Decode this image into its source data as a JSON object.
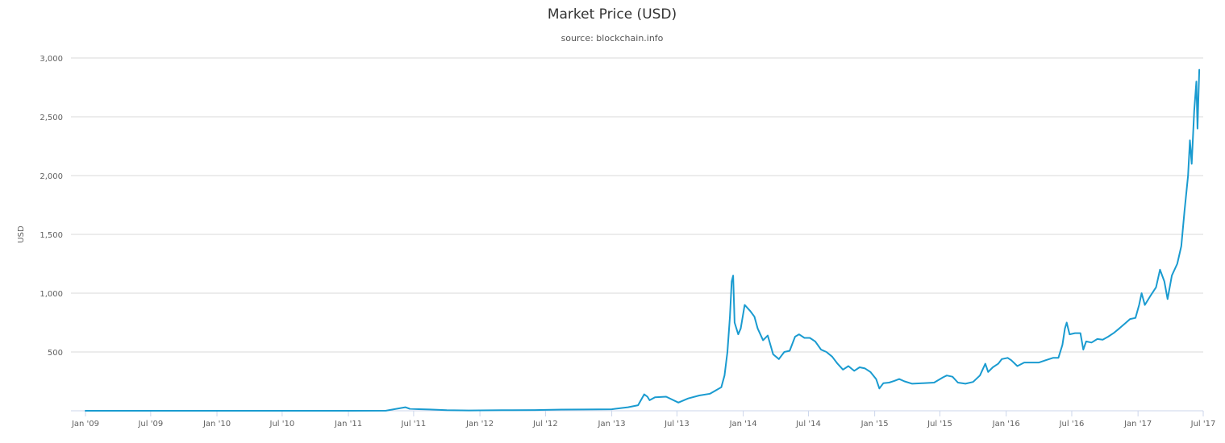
{
  "chart_data": {
    "type": "line",
    "title": "Market Price (USD)",
    "subtitle": "source: blockchain.info",
    "xlabel": "",
    "ylabel": "USD",
    "xlim": [
      "2009-01-01",
      "2017-07-01"
    ],
    "ylim": [
      0,
      3000
    ],
    "yticks": [
      500,
      1000,
      1500,
      2000,
      2500,
      3000
    ],
    "ytick_labels": [
      "500",
      "1,000",
      "1,500",
      "2,000",
      "2,500",
      "3,000"
    ],
    "xticks": [
      "2009-01-01",
      "2009-07-01",
      "2010-01-01",
      "2010-07-01",
      "2011-01-01",
      "2011-07-01",
      "2012-01-01",
      "2012-07-01",
      "2013-01-01",
      "2013-07-01",
      "2014-01-01",
      "2014-07-01",
      "2015-01-01",
      "2015-07-01",
      "2016-01-01",
      "2016-07-01",
      "2017-01-01",
      "2017-07-01"
    ],
    "xtick_labels": [
      "Jan '09",
      "Jul '09",
      "Jan '10",
      "Jul '10",
      "Jan '11",
      "Jul '11",
      "Jan '12",
      "Jul '12",
      "Jan '13",
      "Jul '13",
      "Jan '14",
      "Jul '14",
      "Jan '15",
      "Jul '15",
      "Jan '16",
      "Jul '16",
      "Jan '17",
      "Jul '17"
    ],
    "grid": true,
    "legend": "none",
    "color": "#1a9bd0",
    "series": [
      {
        "x": [
          "2009-01-01",
          "2010-07-01",
          "2011-01-01",
          "2011-04-15",
          "2011-06-08",
          "2011-06-20",
          "2011-07-15",
          "2011-08-15",
          "2011-10-01",
          "2011-12-01",
          "2012-03-01",
          "2012-06-01",
          "2012-08-15",
          "2012-10-15",
          "2013-01-01",
          "2013-02-15",
          "2013-03-15",
          "2013-04-01",
          "2013-04-10",
          "2013-04-16",
          "2013-05-01",
          "2013-06-01",
          "2013-07-05",
          "2013-08-01",
          "2013-09-01",
          "2013-10-01",
          "2013-11-01",
          "2013-11-10",
          "2013-11-18",
          "2013-11-25",
          "2013-11-30",
          "2013-12-04",
          "2013-12-08",
          "2013-12-18",
          "2013-12-25",
          "2014-01-05",
          "2014-01-20",
          "2014-02-01",
          "2014-02-10",
          "2014-02-25",
          "2014-03-10",
          "2014-03-25",
          "2014-04-10",
          "2014-04-25",
          "2014-05-10",
          "2014-05-25",
          "2014-06-05",
          "2014-06-20",
          "2014-07-05",
          "2014-07-20",
          "2014-08-05",
          "2014-08-20",
          "2014-09-05",
          "2014-09-20",
          "2014-10-05",
          "2014-10-20",
          "2014-11-05",
          "2014-11-20",
          "2014-12-05",
          "2014-12-20",
          "2015-01-05",
          "2015-01-14",
          "2015-01-25",
          "2015-02-10",
          "2015-02-25",
          "2015-03-10",
          "2015-03-25",
          "2015-04-15",
          "2015-05-15",
          "2015-06-15",
          "2015-07-10",
          "2015-07-20",
          "2015-08-05",
          "2015-08-20",
          "2015-09-10",
          "2015-10-01",
          "2015-10-20",
          "2015-11-04",
          "2015-11-12",
          "2015-11-25",
          "2015-12-10",
          "2015-12-20",
          "2016-01-05",
          "2016-01-15",
          "2016-02-01",
          "2016-02-20",
          "2016-03-10",
          "2016-04-01",
          "2016-04-20",
          "2016-05-10",
          "2016-05-25",
          "2016-06-05",
          "2016-06-12",
          "2016-06-17",
          "2016-06-25",
          "2016-07-10",
          "2016-07-25",
          "2016-08-02",
          "2016-08-10",
          "2016-08-25",
          "2016-09-10",
          "2016-09-25",
          "2016-10-10",
          "2016-10-25",
          "2016-11-10",
          "2016-11-25",
          "2016-12-10",
          "2016-12-25",
          "2017-01-04",
          "2017-01-11",
          "2017-01-20",
          "2017-02-05",
          "2017-02-20",
          "2017-03-03",
          "2017-03-15",
          "2017-03-24",
          "2017-04-05",
          "2017-04-20",
          "2017-05-01",
          "2017-05-10",
          "2017-05-20",
          "2017-05-25",
          "2017-05-30",
          "2017-06-06",
          "2017-06-12",
          "2017-06-15",
          "2017-06-20"
        ],
        "values": [
          0,
          0,
          0.3,
          1,
          30,
          17,
          14,
          11,
          5,
          3,
          5,
          6,
          10,
          11,
          13,
          30,
          47,
          140,
          120,
          90,
          115,
          120,
          70,
          105,
          130,
          145,
          200,
          300,
          500,
          800,
          1100,
          1150,
          750,
          650,
          700,
          900,
          850,
          800,
          700,
          600,
          640,
          480,
          440,
          500,
          510,
          630,
          650,
          620,
          620,
          590,
          520,
          500,
          460,
          400,
          350,
          380,
          340,
          370,
          360,
          330,
          270,
          190,
          235,
          240,
          255,
          270,
          250,
          230,
          235,
          240,
          285,
          300,
          290,
          240,
          230,
          245,
          300,
          400,
          330,
          370,
          400,
          440,
          450,
          430,
          380,
          410,
          410,
          410,
          430,
          450,
          450,
          560,
          700,
          750,
          650,
          660,
          660,
          520,
          590,
          580,
          610,
          605,
          630,
          660,
          700,
          740,
          780,
          790,
          900,
          1000,
          900,
          980,
          1050,
          1200,
          1100,
          950,
          1150,
          1250,
          1400,
          1700,
          2000,
          2300,
          2100,
          2550,
          2800,
          2400,
          2900
        ]
      }
    ]
  }
}
